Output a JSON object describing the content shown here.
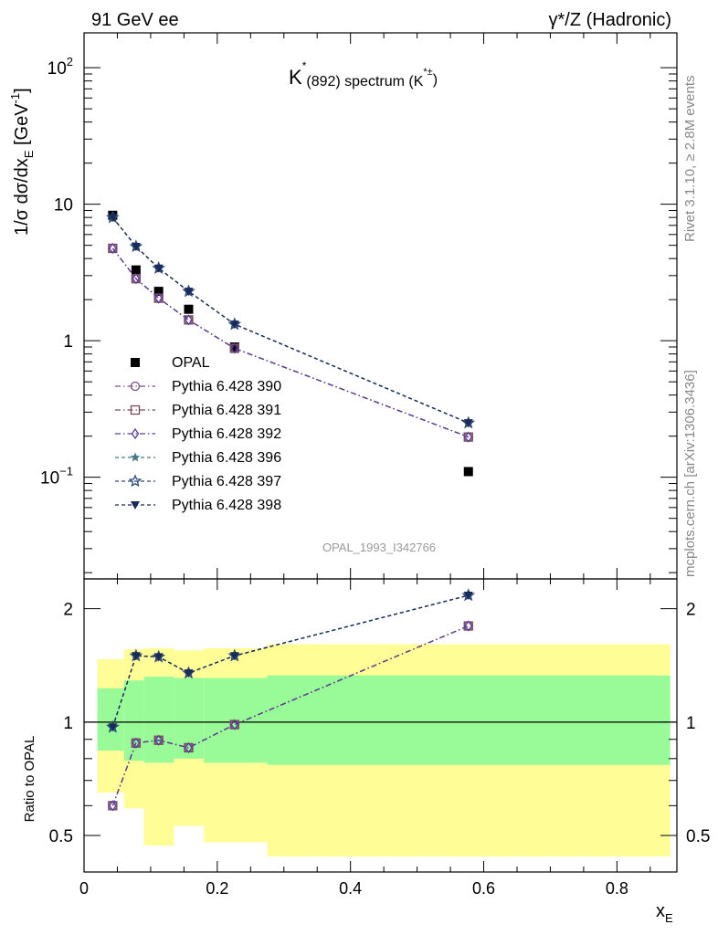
{
  "header": {
    "left": "91 GeV ee",
    "right": "γ*/Z (Hadronic)"
  },
  "side_text": {
    "rivet": "Rivet 3.1.10, ≥ 2.8M events",
    "mcplots": "mcplots.cern.ch [arXiv:1306.3436]"
  },
  "chart_data": [
    {
      "panel": "main",
      "type": "scatter",
      "title": "K*(892) spectrum (K*±)",
      "ylabel": "1/σ dσ/dxE [GeV-1]",
      "yscale": "log",
      "xlim": [
        0,
        0.89
      ],
      "ylim": [
        0.018,
        180
      ],
      "ytick_labels": [
        "10^2",
        "10",
        "1",
        "10^-1"
      ],
      "watermark": "OPAL_1993_I342766",
      "legend_position": "left-middle",
      "series": [
        {
          "name": "OPAL",
          "marker": "filled-square",
          "color": "#000000",
          "x": [
            0.043,
            0.078,
            0.112,
            0.157,
            0.226,
            0.577
          ],
          "y": [
            8.3,
            3.3,
            2.3,
            1.7,
            0.9,
            0.11
          ]
        },
        {
          "name": "Pythia 6.428 390",
          "marker": "open-circle",
          "color": "#7b4f8a",
          "line": "dash-dot",
          "x": [
            0.043,
            0.078,
            0.112,
            0.157,
            0.226,
            0.577
          ],
          "y": [
            4.75,
            2.85,
            2.05,
            1.42,
            0.88,
            0.197
          ]
        },
        {
          "name": "Pythia 6.428 391",
          "marker": "open-square",
          "color": "#7a4a5a",
          "line": "dash-dot",
          "x": [
            0.043,
            0.078,
            0.112,
            0.157,
            0.226,
            0.577
          ],
          "y": [
            4.75,
            2.85,
            2.05,
            1.42,
            0.88,
            0.197
          ]
        },
        {
          "name": "Pythia 6.428 392",
          "marker": "open-diamond",
          "color": "#5b3d9a",
          "line": "dash-dot",
          "x": [
            0.043,
            0.078,
            0.112,
            0.157,
            0.226,
            0.577
          ],
          "y": [
            4.75,
            2.85,
            2.05,
            1.42,
            0.88,
            0.197
          ]
        },
        {
          "name": "Pythia 6.428 396",
          "marker": "star",
          "color": "#4a7a8a",
          "line": "dashed",
          "x": [
            0.043,
            0.078,
            0.112,
            0.157,
            0.226,
            0.577
          ],
          "y": [
            8.0,
            4.9,
            3.4,
            2.3,
            1.32,
            0.25
          ]
        },
        {
          "name": "Pythia 6.428 397",
          "marker": "open-star",
          "color": "#2e4a78",
          "line": "dashed",
          "x": [
            0.043,
            0.078,
            0.112,
            0.157,
            0.226,
            0.577
          ],
          "y": [
            8.0,
            4.9,
            3.4,
            2.3,
            1.32,
            0.25
          ]
        },
        {
          "name": "Pythia 6.428 398",
          "marker": "filled-triangle-down",
          "color": "#1a2a5a",
          "line": "dashed",
          "x": [
            0.043,
            0.078,
            0.112,
            0.157,
            0.226,
            0.577
          ],
          "y": [
            8.0,
            4.9,
            3.4,
            2.3,
            1.32,
            0.25
          ]
        }
      ]
    },
    {
      "panel": "ratio",
      "type": "line",
      "ylabel": "Ratio to OPAL",
      "xlabel": "xE",
      "yscale": "log",
      "ylim": [
        0.4,
        2.4
      ],
      "ytick_labels": [
        "2",
        "1",
        "0.5"
      ],
      "xticks": [
        0,
        0.2,
        0.4,
        0.6,
        0.8
      ],
      "xtick_labels": [
        "0",
        "0.2",
        "0.4",
        "0.6",
        "0.8"
      ],
      "reference": 1,
      "bins": [
        {
          "x0": 0.02,
          "x1": 0.06,
          "band_inner": [
            0.84,
            1.23
          ],
          "band_outer": [
            0.65,
            1.47
          ]
        },
        {
          "x0": 0.06,
          "x1": 0.09,
          "band_inner": [
            0.79,
            1.29
          ],
          "band_outer": [
            0.59,
            1.56
          ]
        },
        {
          "x0": 0.09,
          "x1": 0.135,
          "band_inner": [
            0.78,
            1.32
          ],
          "band_outer": [
            0.47,
            1.57
          ]
        },
        {
          "x0": 0.135,
          "x1": 0.18,
          "band_inner": [
            0.8,
            1.31
          ],
          "band_outer": [
            0.53,
            1.55
          ]
        },
        {
          "x0": 0.18,
          "x1": 0.275,
          "band_inner": [
            0.78,
            1.31
          ],
          "band_outer": [
            0.48,
            1.57
          ]
        },
        {
          "x0": 0.275,
          "x1": 0.88,
          "band_inner": [
            0.77,
            1.33
          ],
          "band_outer": [
            0.44,
            1.61
          ]
        }
      ],
      "band_colors": {
        "inner": "#98fb98",
        "outer": "#fffe96"
      },
      "series": [
        {
          "name": "Pythia 6.428 390",
          "marker": "open-circle",
          "color": "#7b4f8a",
          "line": "dash-dot",
          "x": [
            0.043,
            0.078,
            0.112,
            0.157,
            0.226,
            0.577
          ],
          "y": [
            0.6,
            0.88,
            0.895,
            0.855,
            0.985,
            1.8
          ]
        },
        {
          "name": "Pythia 6.428 391",
          "marker": "open-square",
          "color": "#7a4a5a",
          "line": "dash-dot",
          "x": [
            0.043,
            0.078,
            0.112,
            0.157,
            0.226,
            0.577
          ],
          "y": [
            0.6,
            0.88,
            0.895,
            0.855,
            0.985,
            1.8
          ]
        },
        {
          "name": "Pythia 6.428 392",
          "marker": "open-diamond",
          "color": "#5b3d9a",
          "line": "dash-dot",
          "x": [
            0.043,
            0.078,
            0.112,
            0.157,
            0.226,
            0.577
          ],
          "y": [
            0.6,
            0.88,
            0.895,
            0.855,
            0.985,
            1.8
          ]
        },
        {
          "name": "Pythia 6.428 396",
          "marker": "star",
          "color": "#4a7a8a",
          "line": "dashed",
          "x": [
            0.043,
            0.078,
            0.112,
            0.157,
            0.226,
            0.577
          ],
          "y": [
            0.97,
            1.5,
            1.49,
            1.35,
            1.5,
            2.17
          ]
        },
        {
          "name": "Pythia 6.428 397",
          "marker": "open-star",
          "color": "#2e4a78",
          "line": "dashed",
          "x": [
            0.043,
            0.078,
            0.112,
            0.157,
            0.226,
            0.577
          ],
          "y": [
            0.97,
            1.5,
            1.49,
            1.35,
            1.5,
            2.17
          ]
        },
        {
          "name": "Pythia 6.428 398",
          "marker": "filled-triangle-down",
          "color": "#1a2a5a",
          "line": "dashed",
          "x": [
            0.043,
            0.078,
            0.112,
            0.157,
            0.226,
            0.577
          ],
          "y": [
            0.97,
            1.5,
            1.49,
            1.35,
            1.5,
            2.17
          ]
        }
      ]
    }
  ]
}
